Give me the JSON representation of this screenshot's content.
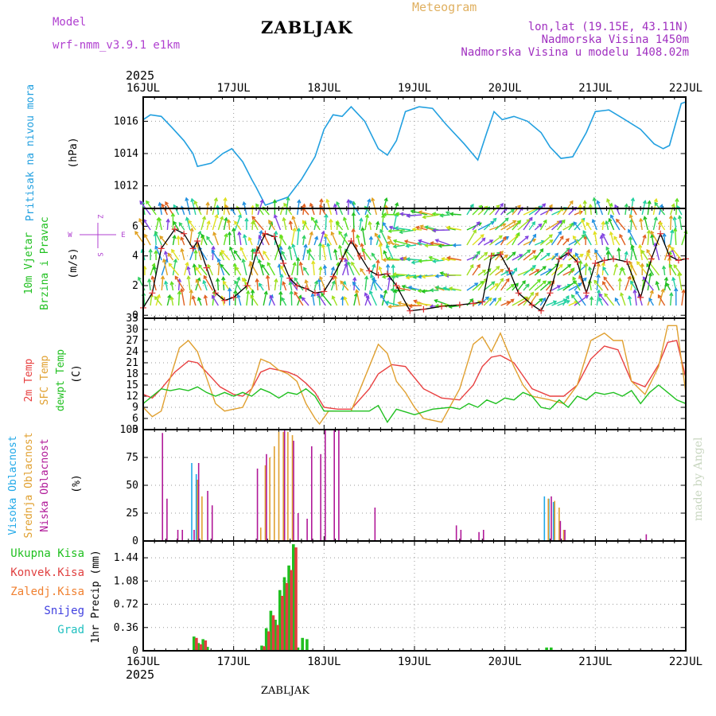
{
  "header": {
    "model_label": "Model",
    "model_name": "wrf-nmm_v3.9.1 e1km",
    "title": "ZABLJAK",
    "chart_type_label": "Meteogram",
    "location": "lon,lat (19.15E, 43.11N)",
    "elevation": "Nadmorska Visina 1450m",
    "model_elevation": "Nadmorska Visina u modelu 1408.02m",
    "footer": "ZABLJAK",
    "watermark": "made by Angel",
    "year": "2025"
  },
  "colors": {
    "pressure": "#22a0e0",
    "temp2m": "#e84040",
    "sfc": "#e0a030",
    "dewpoint": "#20c020",
    "high_cloud": "#20a8e8",
    "mid_cloud": "#e0a030",
    "low_cloud": "#b01898",
    "precip_total": "#20c020",
    "precip_conv": "#e04040",
    "precip_frz": "#f08030",
    "snow": "#4040e0",
    "graupel": "#20c0c0",
    "model_label": "#b040d0",
    "header_right": "#a030c0",
    "chart_type": "#e0b060"
  },
  "chart_data": [
    {
      "type": "line",
      "panel": "pressure",
      "ylabel_name": "Pritisak na nivou mora",
      "ylabel_unit": "(hPa)",
      "x_ticks": [
        "16JUL",
        "17JUL",
        "18JUL",
        "19JUL",
        "20JUL",
        "21JUL",
        "22JUL"
      ],
      "y_ticks": [
        1012,
        1014,
        1016
      ],
      "ylim": [
        1010.6,
        1017.5
      ],
      "grid": true,
      "series": [
        {
          "x": [
            0,
            0.08,
            0.2,
            0.32,
            0.45,
            0.55,
            0.6,
            0.75,
            0.88,
            0.98,
            1.1,
            1.2,
            1.25,
            1.35,
            1.45,
            1.6,
            1.75,
            1.9,
            2.0,
            2.1,
            2.2,
            2.3,
            2.45,
            2.6,
            2.7,
            2.8,
            2.9,
            3.05,
            3.2,
            3.35,
            3.55,
            3.7,
            3.8,
            3.88,
            3.97,
            4.1,
            4.25,
            4.4,
            4.5,
            4.62,
            4.75,
            4.9,
            5.0,
            5.15,
            5.3,
            5.5,
            5.65,
            5.75,
            5.82,
            5.95,
            6.0
          ],
          "values": [
            1016.1,
            1016.4,
            1016.3,
            1015.6,
            1014.8,
            1014.0,
            1013.2,
            1013.4,
            1014.0,
            1014.3,
            1013.5,
            1012.4,
            1011.9,
            1010.8,
            1011.0,
            1011.3,
            1012.4,
            1013.8,
            1015.5,
            1016.4,
            1016.3,
            1016.9,
            1016.0,
            1014.3,
            1013.9,
            1014.8,
            1016.6,
            1016.9,
            1016.8,
            1015.8,
            1014.6,
            1013.6,
            1015.3,
            1016.6,
            1016.1,
            1016.3,
            1016.0,
            1015.3,
            1014.4,
            1013.7,
            1013.8,
            1015.3,
            1016.6,
            1016.7,
            1016.2,
            1015.5,
            1014.6,
            1014.3,
            1014.5,
            1017.1,
            1017.2
          ]
        }
      ]
    },
    {
      "type": "line",
      "panel": "wind",
      "ylabel_name1": "10m Vjetar",
      "ylabel_name2": "Brzina i Pravac",
      "ylabel_unit": "(m/s)",
      "compass": {
        "n": "Z",
        "s": "S",
        "w": "W",
        "e": "E"
      },
      "y_ticks": [
        0,
        2,
        4,
        6
      ],
      "ylim": [
        -0.2,
        7.2
      ],
      "grid": true,
      "series": [
        {
          "name": "wind speed",
          "x": [
            0,
            0.1,
            0.2,
            0.35,
            0.45,
            0.55,
            0.6,
            0.7,
            0.8,
            0.9,
            1.0,
            1.15,
            1.25,
            1.35,
            1.45,
            1.55,
            1.62,
            1.7,
            1.8,
            1.9,
            2.0,
            2.1,
            2.2,
            2.3,
            2.4,
            2.5,
            2.6,
            2.7,
            2.8,
            2.95,
            3.1,
            3.3,
            3.5,
            3.65,
            3.75,
            3.85,
            3.95,
            4.05,
            4.15,
            4.3,
            4.4,
            4.5,
            4.6,
            4.7,
            4.8,
            4.9,
            5.0,
            5.1,
            5.2,
            5.35,
            5.5,
            5.62,
            5.72,
            5.82,
            5.92,
            6.0
          ],
          "values": [
            0.5,
            1.5,
            4.5,
            5.8,
            5.5,
            4.5,
            5.0,
            3.2,
            1.5,
            1.0,
            1.2,
            2.0,
            4.2,
            5.5,
            5.3,
            3.5,
            2.5,
            2.0,
            1.8,
            1.5,
            1.6,
            2.6,
            3.8,
            5.0,
            4.0,
            3.0,
            2.7,
            2.8,
            2.0,
            0.3,
            0.4,
            0.6,
            0.7,
            0.8,
            0.9,
            4.0,
            4.1,
            3.0,
            1.5,
            0.7,
            0.3,
            1.5,
            3.8,
            4.2,
            3.6,
            1.5,
            3.5,
            3.7,
            3.8,
            3.6,
            1.2,
            3.8,
            5.5,
            4.0,
            3.7,
            3.8
          ]
        }
      ]
    },
    {
      "type": "line",
      "panel": "temperature",
      "ylabel_name1": "2m Temp",
      "ylabel_name2": "SFC Temp",
      "ylabel_name3": "dewpt Temp",
      "ylabel_unit": "(C)",
      "y_ticks": [
        3,
        6,
        9,
        12,
        15,
        18,
        21,
        24,
        27,
        30,
        33
      ],
      "ylim": [
        3,
        33
      ],
      "grid": true,
      "series": [
        {
          "name": "2m Temp",
          "x": [
            0,
            0.1,
            0.2,
            0.35,
            0.5,
            0.6,
            0.7,
            0.85,
            1.0,
            1.1,
            1.2,
            1.3,
            1.4,
            1.5,
            1.6,
            1.7,
            1.8,
            1.9,
            2.0,
            2.15,
            2.3,
            2.5,
            2.6,
            2.75,
            2.9,
            3.1,
            3.3,
            3.5,
            3.65,
            3.75,
            3.85,
            3.95,
            4.1,
            4.3,
            4.5,
            4.65,
            4.8,
            4.95,
            5.1,
            5.25,
            5.4,
            5.55,
            5.7,
            5.8,
            5.9,
            6.0
          ],
          "values": [
            12.5,
            11.5,
            14.0,
            18.5,
            21.5,
            21.0,
            18.5,
            14.5,
            12.5,
            12.0,
            14.0,
            18.5,
            19.5,
            19.0,
            18.5,
            17.5,
            15.5,
            13.0,
            9.0,
            8.5,
            8.5,
            14.0,
            18.0,
            20.5,
            20.0,
            14.0,
            11.5,
            11.0,
            15.0,
            20.0,
            22.5,
            23.0,
            21.0,
            14.0,
            12.0,
            12.0,
            15.0,
            22.0,
            25.5,
            24.5,
            16.0,
            14.5,
            20.5,
            26.5,
            27.0,
            17.0
          ]
        },
        {
          "name": "SFC Temp",
          "x": [
            0,
            0.1,
            0.2,
            0.3,
            0.4,
            0.5,
            0.6,
            0.7,
            0.8,
            0.9,
            1.0,
            1.1,
            1.2,
            1.3,
            1.4,
            1.5,
            1.6,
            1.7,
            1.8,
            1.9,
            1.95,
            2.05,
            2.2,
            2.3,
            2.5,
            2.6,
            2.7,
            2.8,
            2.9,
            3.0,
            3.1,
            3.2,
            3.3,
            3.5,
            3.65,
            3.75,
            3.85,
            3.95,
            4.1,
            4.2,
            4.3,
            4.5,
            4.65,
            4.8,
            4.95,
            5.1,
            5.2,
            5.3,
            5.4,
            5.55,
            5.7,
            5.8,
            5.9,
            6.0
          ],
          "values": [
            9.0,
            6.5,
            8.0,
            17.0,
            25.0,
            27.0,
            24.0,
            17.0,
            10.0,
            8.0,
            8.5,
            9.0,
            14.0,
            22.0,
            21.0,
            19.0,
            18.0,
            16.0,
            10.0,
            6.0,
            4.5,
            8.0,
            8.0,
            8.0,
            20.0,
            26.0,
            23.5,
            16.0,
            13.0,
            9.0,
            6.0,
            5.5,
            5.0,
            14.0,
            26.0,
            28.0,
            24.0,
            29.0,
            20.0,
            15.0,
            12.0,
            11.0,
            10.0,
            15.0,
            27.0,
            29.0,
            27.0,
            27.0,
            16.0,
            12.5,
            20.0,
            31.0,
            31.0,
            13.0
          ]
        },
        {
          "name": "dewpt Temp",
          "x": [
            0,
            0.1,
            0.2,
            0.3,
            0.4,
            0.5,
            0.6,
            0.7,
            0.8,
            0.9,
            1.0,
            1.1,
            1.2,
            1.3,
            1.4,
            1.5,
            1.6,
            1.7,
            1.8,
            1.9,
            2.0,
            2.2,
            2.4,
            2.5,
            2.6,
            2.7,
            2.8,
            3.0,
            3.2,
            3.4,
            3.5,
            3.6,
            3.7,
            3.8,
            3.9,
            4.0,
            4.1,
            4.2,
            4.3,
            4.4,
            4.5,
            4.6,
            4.7,
            4.8,
            4.9,
            5.0,
            5.1,
            5.2,
            5.3,
            5.4,
            5.5,
            5.6,
            5.7,
            5.8,
            5.9,
            6.0
          ],
          "values": [
            10.0,
            12.0,
            14.0,
            13.5,
            14.0,
            13.5,
            14.5,
            13.0,
            12.0,
            13.0,
            12.0,
            13.0,
            12.0,
            14.0,
            13.0,
            11.5,
            13.0,
            12.5,
            14.0,
            12.0,
            8.0,
            8.0,
            8.0,
            8.0,
            9.5,
            5.0,
            8.5,
            7.0,
            8.5,
            9.0,
            8.5,
            10.0,
            9.0,
            11.0,
            10.0,
            11.5,
            11.0,
            13.0,
            12.0,
            9.0,
            8.5,
            11.0,
            9.0,
            12.0,
            11.0,
            13.0,
            12.5,
            13.0,
            12.0,
            13.5,
            10.0,
            13.0,
            15.0,
            13.0,
            11.0,
            10.0
          ]
        }
      ]
    },
    {
      "type": "bar",
      "panel": "cloud",
      "ylabel_name1": "Visoka Oblacnost",
      "ylabel_name2": "Srednja Oblacnost",
      "ylabel_name3": "Niska Oblacnost",
      "ylabel_unit": "(%)",
      "y_ticks": [
        0,
        25,
        50,
        75,
        100
      ],
      "ylim": [
        0,
        100
      ],
      "grid": true,
      "series": [
        {
          "name": "Visoka Oblacnost",
          "x": [
            0.55,
            0.6,
            4.45,
            4.5,
            4.55
          ],
          "values": [
            70,
            60,
            40,
            38,
            35
          ]
        },
        {
          "name": "Srednja Oblacnost",
          "x": [
            1.3,
            1.35,
            1.4,
            1.45,
            1.5,
            1.55,
            1.6,
            1.65,
            0.6,
            0.65,
            4.48,
            4.55,
            4.6,
            4.65
          ],
          "values": [
            12,
            68,
            75,
            85,
            98,
            98,
            98,
            95,
            55,
            40,
            38,
            36,
            30,
            10
          ]
        },
        {
          "name": "Niska Oblacnost",
          "x": [
            0.2,
            0.25,
            0.37,
            0.42,
            0.55,
            0.6,
            0.7,
            0.75,
            1.25,
            1.35,
            1.55,
            1.65,
            1.7,
            1.8,
            1.85,
            1.95,
            2.0,
            2.1,
            2.15,
            2.55,
            3.45,
            3.5,
            3.7,
            3.75,
            4.5,
            4.6,
            4.65,
            5.55
          ],
          "values": [
            97,
            38,
            10,
            10,
            10,
            70,
            45,
            32,
            65,
            78,
            100,
            90,
            25,
            20,
            85,
            78,
            100,
            100,
            100,
            30,
            14,
            10,
            8,
            10,
            40,
            18,
            10,
            6
          ]
        }
      ]
    },
    {
      "type": "bar",
      "panel": "precip",
      "ylabel_name1": "Ukupna Kisa",
      "ylabel_name2": "Konvek.Kisa",
      "ylabel_name3": "Zaledj.Kisa",
      "ylabel_name4": "Snijeg",
      "ylabel_name5": "Grad",
      "ylabel_unit": "1hr Precip (mm)",
      "x_ticks": [
        "16JUL",
        "17JUL",
        "18JUL",
        "19JUL",
        "20JUL",
        "21JUL",
        "22JUL"
      ],
      "y_ticks": [
        0,
        0.36,
        0.72,
        1.08,
        1.44
      ],
      "ylim": [
        0,
        1.7
      ],
      "grid": true,
      "series": [
        {
          "name": "Ukupna Kisa",
          "x": [
            0.57,
            0.62,
            0.67,
            0.72,
            1.32,
            1.37,
            1.42,
            1.47,
            1.52,
            1.57,
            1.62,
            1.67,
            1.72,
            1.77,
            1.82,
            4.47,
            4.52
          ],
          "values": [
            0.22,
            0.12,
            0.18,
            0.06,
            0.08,
            0.35,
            0.62,
            0.48,
            0.94,
            1.14,
            1.32,
            1.65,
            0.05,
            0.2,
            0.18,
            0.05,
            0.05
          ]
        },
        {
          "name": "Konvek.Kisa",
          "x": [
            0.58,
            0.63,
            0.68,
            1.33,
            1.38,
            1.43,
            1.48,
            1.53,
            1.58,
            1.63,
            1.68
          ],
          "values": [
            0.2,
            0.1,
            0.16,
            0.07,
            0.3,
            0.55,
            0.4,
            0.85,
            1.05,
            1.25,
            1.6
          ]
        }
      ]
    }
  ]
}
